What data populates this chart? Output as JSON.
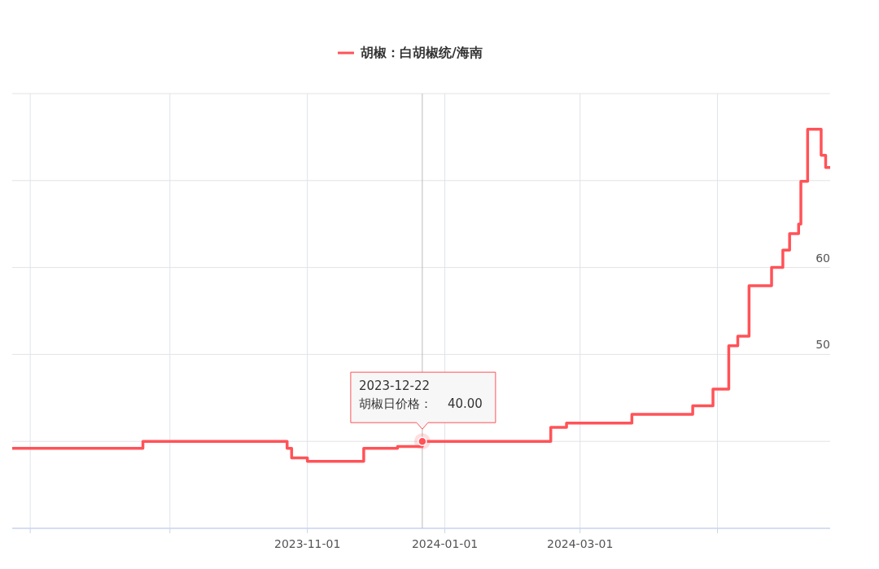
{
  "chart_data": {
    "type": "step",
    "legend": "top",
    "grid": true,
    "x": [
      "2023-06-23",
      "2023-08-20",
      "2023-10-23",
      "2023-10-25",
      "2023-11-01",
      "2023-11-26",
      "2023-12-11",
      "2023-12-22",
      "2024-02-17",
      "2024-02-24",
      "2024-03-24",
      "2024-04-20",
      "2024-04-29",
      "2024-05-06",
      "2024-05-10",
      "2024-05-15",
      "2024-05-25",
      "2024-05-30",
      "2024-06-02",
      "2024-06-06",
      "2024-06-07",
      "2024-06-10",
      "2024-06-16",
      "2024-06-18",
      "2024-06-20"
    ],
    "series": [
      {
        "name": "胡椒：白胡椒统/海南",
        "color": "#ff5358",
        "values": [
          39.2,
          40,
          39.2,
          38.1,
          37.7,
          39.2,
          39.4,
          40,
          41.6,
          42.1,
          43.1,
          44.1,
          46.0,
          51.0,
          52.1,
          57.9,
          60,
          62,
          63.9,
          65.0,
          69.9,
          75.9,
          72.9,
          71.5,
          71.5
        ]
      }
    ],
    "xlim": [
      "2023-06-23",
      "2024-06-20"
    ],
    "xticks": [
      {
        "value": "2023-07-01",
        "label": null
      },
      {
        "value": "2023-09-01",
        "label": null
      },
      {
        "value": "2023-11-01",
        "label": "2023-11-01"
      },
      {
        "value": "2024-01-01",
        "label": "2024-01-01"
      },
      {
        "value": "2024-03-01",
        "label": "2024-03-01"
      },
      {
        "value": "2024-05-01",
        "label": null
      }
    ],
    "ylim": [
      30,
      80
    ],
    "yticks": [
      {
        "value": 30,
        "label": null
      },
      {
        "value": 40,
        "label": null
      },
      50,
      60,
      {
        "value": 70,
        "label": null
      },
      {
        "value": 80,
        "label": null
      }
    ],
    "ref_lines": [
      {
        "axis": "x",
        "value": "2023-12-22",
        "label": null,
        "color": "#bbbbbb"
      }
    ],
    "annotations": [
      {
        "text": "2023-12-22\n胡椒日价格：    40.00",
        "x": "2023-12-22",
        "y": 40
      }
    ]
  }
}
